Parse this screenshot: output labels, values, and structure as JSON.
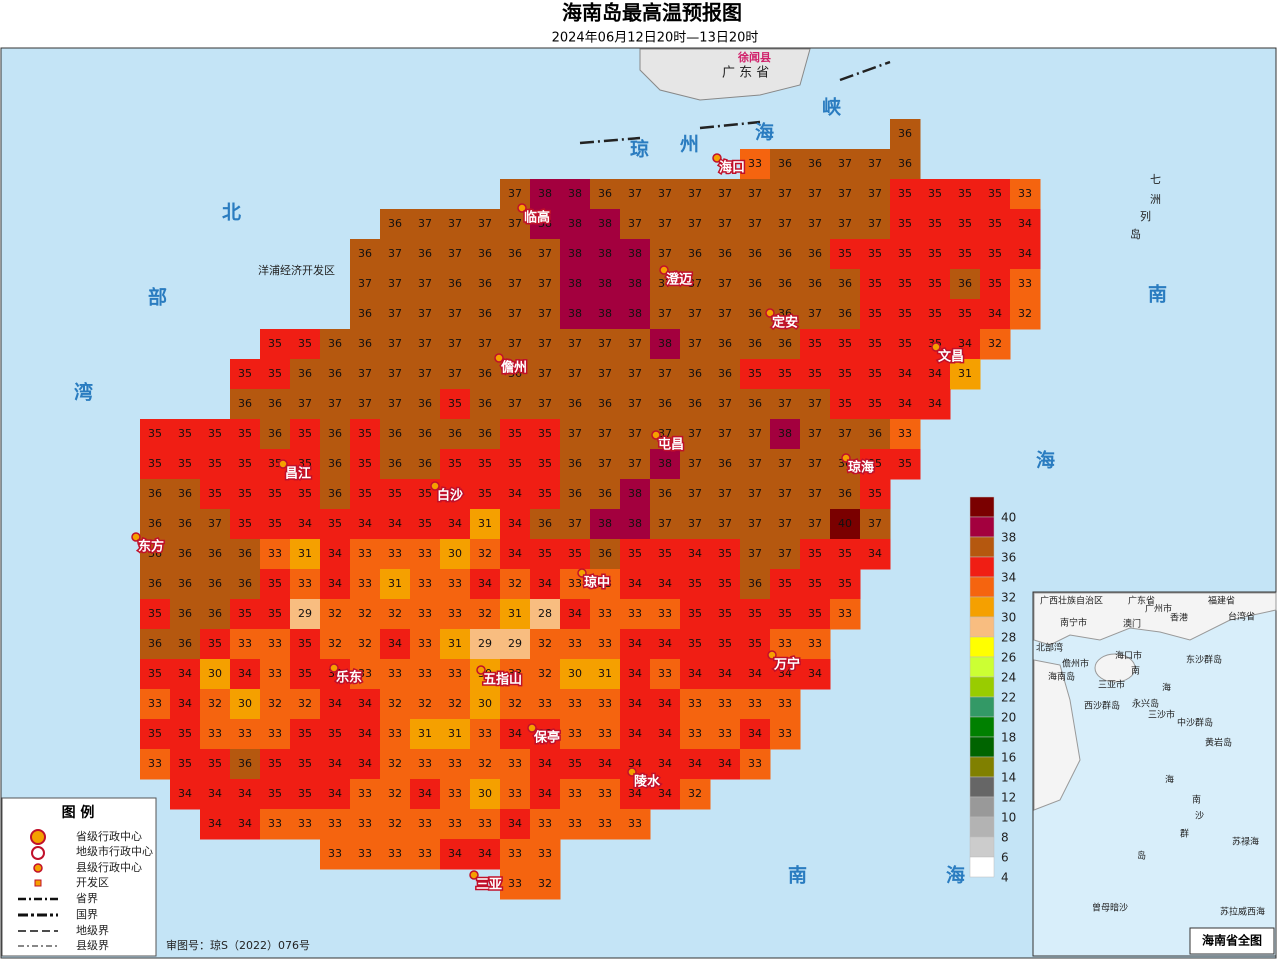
{
  "title": "海南岛最高温预报图",
  "subtitle": "2024年06月12日20时—13日20时",
  "scale": [
    {
      "value": 40,
      "color": "#7a0000"
    },
    {
      "value": 38,
      "color": "#a3003e"
    },
    {
      "value": 36,
      "color": "#b5580f"
    },
    {
      "value": 34,
      "color": "#f01e14"
    },
    {
      "value": 32,
      "color": "#f5640f"
    },
    {
      "value": 30,
      "color": "#f5a000"
    },
    {
      "value": 28,
      "color": "#f8bd80"
    },
    {
      "value": 26,
      "color": "#ffff00"
    },
    {
      "value": 24,
      "color": "#ccff33"
    },
    {
      "value": 22,
      "color": "#99cc00"
    },
    {
      "value": 20,
      "color": "#339966"
    },
    {
      "value": 18,
      "color": "#008000"
    },
    {
      "value": 16,
      "color": "#006400"
    },
    {
      "value": 14,
      "color": "#808000"
    },
    {
      "value": 12,
      "color": "#666666"
    },
    {
      "value": 10,
      "color": "#999999"
    },
    {
      "value": 8,
      "color": "#b3b3b3"
    },
    {
      "value": 6,
      "color": "#cccccc"
    },
    {
      "value": 4,
      "color": "#ffffff"
    }
  ],
  "grid": {
    "rows": [
      [
        null,
        null,
        null,
        null,
        null,
        null,
        null,
        null,
        null,
        null,
        null,
        null,
        null,
        null,
        null,
        null,
        null,
        null,
        null,
        null,
        null,
        null,
        null,
        null,
        null,
        36,
        null,
        null,
        null,
        null
      ],
      [
        null,
        null,
        null,
        null,
        null,
        null,
        null,
        null,
        null,
        null,
        null,
        null,
        null,
        null,
        null,
        null,
        null,
        null,
        null,
        null,
        33,
        36,
        36,
        37,
        37,
        36,
        null,
        null,
        null,
        null
      ],
      [
        null,
        null,
        null,
        null,
        null,
        null,
        null,
        null,
        null,
        null,
        null,
        null,
        37,
        38,
        38,
        36,
        37,
        37,
        37,
        37,
        37,
        37,
        37,
        37,
        37,
        35,
        35,
        35,
        35,
        33
      ],
      [
        null,
        null,
        null,
        null,
        null,
        null,
        null,
        null,
        36,
        37,
        37,
        37,
        37,
        38,
        38,
        38,
        37,
        37,
        37,
        37,
        37,
        37,
        37,
        37,
        37,
        35,
        35,
        35,
        35,
        34
      ],
      [
        null,
        null,
        null,
        null,
        null,
        null,
        null,
        36,
        37,
        36,
        37,
        36,
        36,
        37,
        38,
        38,
        38,
        37,
        36,
        36,
        36,
        36,
        36,
        35,
        35,
        35,
        35,
        35,
        35,
        34
      ],
      [
        null,
        null,
        null,
        null,
        null,
        null,
        null,
        37,
        37,
        37,
        36,
        36,
        37,
        37,
        38,
        38,
        38,
        37,
        37,
        37,
        36,
        36,
        36,
        36,
        35,
        35,
        35,
        36,
        35,
        33
      ],
      [
        null,
        null,
        null,
        null,
        null,
        null,
        null,
        36,
        37,
        37,
        37,
        36,
        37,
        37,
        38,
        38,
        38,
        37,
        37,
        37,
        36,
        36,
        37,
        36,
        35,
        35,
        35,
        35,
        34,
        32
      ],
      [
        null,
        null,
        null,
        null,
        35,
        35,
        36,
        36,
        37,
        37,
        37,
        37,
        37,
        37,
        37,
        37,
        37,
        38,
        37,
        36,
        36,
        36,
        35,
        35,
        35,
        35,
        35,
        34,
        32,
        null
      ],
      [
        null,
        null,
        null,
        35,
        35,
        36,
        36,
        37,
        37,
        37,
        37,
        36,
        36,
        37,
        37,
        37,
        37,
        37,
        36,
        36,
        35,
        35,
        35,
        35,
        35,
        34,
        34,
        31,
        null,
        null
      ],
      [
        null,
        null,
        null,
        36,
        36,
        37,
        37,
        37,
        37,
        36,
        35,
        36,
        37,
        37,
        36,
        36,
        37,
        36,
        36,
        37,
        36,
        37,
        37,
        35,
        35,
        34,
        34,
        null,
        null,
        null
      ],
      [
        35,
        35,
        35,
        35,
        36,
        35,
        36,
        35,
        36,
        36,
        36,
        36,
        35,
        35,
        37,
        37,
        37,
        37,
        37,
        37,
        37,
        38,
        37,
        37,
        36,
        33,
        null,
        null,
        null,
        null
      ],
      [
        35,
        35,
        35,
        35,
        35,
        35,
        36,
        35,
        36,
        36,
        35,
        35,
        35,
        35,
        36,
        37,
        37,
        38,
        37,
        36,
        37,
        37,
        37,
        36,
        35,
        35,
        null,
        null,
        null,
        null
      ],
      [
        36,
        36,
        35,
        35,
        35,
        35,
        36,
        35,
        35,
        35,
        34,
        35,
        34,
        35,
        36,
        36,
        38,
        36,
        37,
        37,
        37,
        37,
        37,
        36,
        35,
        null,
        null,
        null,
        null,
        null
      ],
      [
        36,
        36,
        37,
        35,
        35,
        34,
        35,
        34,
        34,
        35,
        34,
        31,
        34,
        36,
        37,
        38,
        38,
        37,
        37,
        37,
        37,
        37,
        37,
        40,
        37,
        null,
        null,
        null,
        null,
        null
      ],
      [
        36,
        36,
        36,
        36,
        33,
        31,
        34,
        33,
        33,
        33,
        30,
        32,
        34,
        35,
        35,
        36,
        35,
        35,
        34,
        35,
        37,
        37,
        35,
        35,
        34,
        null,
        null,
        null,
        null,
        null
      ],
      [
        36,
        36,
        36,
        36,
        35,
        33,
        34,
        33,
        31,
        33,
        33,
        34,
        32,
        34,
        33,
        33,
        34,
        34,
        35,
        35,
        36,
        35,
        35,
        35,
        null,
        null,
        null,
        null,
        null,
        null
      ],
      [
        35,
        36,
        36,
        35,
        35,
        29,
        32,
        32,
        32,
        33,
        33,
        32,
        31,
        28,
        34,
        33,
        33,
        33,
        35,
        35,
        35,
        35,
        35,
        33,
        null,
        null,
        null,
        null,
        null,
        null
      ],
      [
        36,
        36,
        35,
        33,
        33,
        35,
        32,
        32,
        34,
        33,
        31,
        29,
        29,
        32,
        33,
        33,
        34,
        34,
        35,
        35,
        35,
        33,
        33,
        null,
        null,
        null,
        null,
        null,
        null,
        null
      ],
      [
        35,
        34,
        30,
        34,
        33,
        35,
        34,
        33,
        33,
        33,
        33,
        30,
        33,
        32,
        30,
        31,
        34,
        33,
        34,
        34,
        34,
        34,
        34,
        null,
        null,
        null,
        null,
        null,
        null,
        null
      ],
      [
        33,
        34,
        32,
        30,
        32,
        32,
        34,
        34,
        32,
        32,
        32,
        30,
        32,
        33,
        33,
        33,
        34,
        34,
        33,
        33,
        33,
        33,
        null,
        null,
        null,
        null,
        null,
        null,
        null,
        null
      ],
      [
        35,
        35,
        33,
        33,
        33,
        35,
        35,
        34,
        33,
        31,
        31,
        33,
        34,
        35,
        33,
        33,
        34,
        34,
        33,
        33,
        34,
        33,
        null,
        null,
        null,
        null,
        null,
        null,
        null,
        null
      ],
      [
        33,
        35,
        35,
        36,
        35,
        35,
        34,
        34,
        32,
        33,
        33,
        32,
        33,
        34,
        35,
        34,
        34,
        34,
        34,
        34,
        33,
        null,
        null,
        null,
        null,
        null,
        null,
        null,
        null,
        null
      ],
      [
        null,
        34,
        34,
        34,
        35,
        35,
        34,
        33,
        32,
        34,
        33,
        30,
        33,
        34,
        33,
        33,
        34,
        34,
        32,
        null,
        null,
        null,
        null,
        null,
        null,
        null,
        null,
        null,
        null,
        null
      ],
      [
        null,
        null,
        34,
        34,
        33,
        33,
        33,
        33,
        32,
        33,
        33,
        33,
        34,
        33,
        33,
        33,
        33,
        null,
        null,
        null,
        null,
        null,
        null,
        null,
        null,
        null,
        null,
        null,
        null,
        null
      ],
      [
        null,
        null,
        null,
        null,
        null,
        null,
        33,
        33,
        33,
        33,
        34,
        34,
        33,
        33,
        null,
        null,
        null,
        null,
        null,
        null,
        null,
        null,
        null,
        null,
        null,
        null,
        null,
        null,
        null,
        null
      ],
      [
        null,
        null,
        null,
        null,
        null,
        null,
        null,
        null,
        null,
        null,
        null,
        null,
        33,
        32,
        null,
        null,
        null,
        null,
        null,
        null,
        null,
        null,
        null,
        null,
        null,
        null,
        null,
        null,
        null,
        null
      ]
    ]
  },
  "places": [
    "海口",
    "临高",
    "澄迈",
    "定安",
    "文昌",
    "儋州",
    "屯昌",
    "琼海",
    "昌江",
    "白沙",
    "东方",
    "琼中",
    "万宁",
    "乐东",
    "五指山",
    "保亭",
    "陵水",
    "三亚"
  ],
  "other_labels": [
    "广 东 省",
    "徐闻县",
    "洋浦经济开发区"
  ],
  "sea_labels": [
    "琼",
    "州",
    "海",
    "峡",
    "北",
    "部",
    "湾",
    "南",
    "海",
    "南",
    "海",
    "南",
    "海",
    "七",
    "洲",
    "列",
    "岛"
  ],
  "legend": {
    "title": "图  例",
    "items": [
      "省级行政中心",
      "地级市行政中心",
      "县级行政中心",
      "开发区",
      "省界",
      "国界",
      "地级界",
      "县级界"
    ]
  },
  "approval": "审图号：琼S（2022）076号",
  "inset": {
    "title": "海南省全图",
    "labels": [
      "广西壮族自治区",
      "广东省",
      "福建省",
      "台湾省",
      "南宁市",
      "广州市",
      "澳门",
      "香港",
      "北部湾",
      "海口市",
      "儋州市",
      "海南岛",
      "三亚市",
      "南",
      "海",
      "东沙群岛",
      "西沙群岛",
      "永兴岛",
      "三沙市",
      "中沙群岛",
      "黄岩岛",
      "海",
      "南",
      "沙",
      "群",
      "岛",
      "苏禄海",
      "曾母暗沙",
      "苏拉威西海"
    ]
  }
}
